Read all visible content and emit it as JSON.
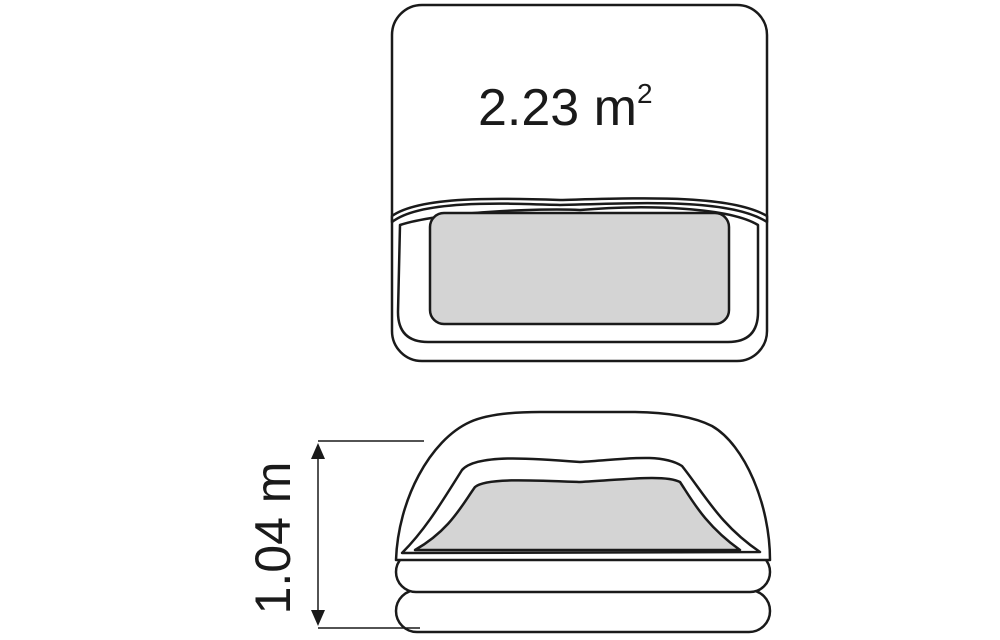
{
  "diagram": {
    "area_value": "2.23 m",
    "area_exponent": "2",
    "height_label": "1.04 m",
    "colors": {
      "stroke": "#1a1a1a",
      "background": "#ffffff",
      "seat_fill": "#d4d4d4"
    }
  }
}
